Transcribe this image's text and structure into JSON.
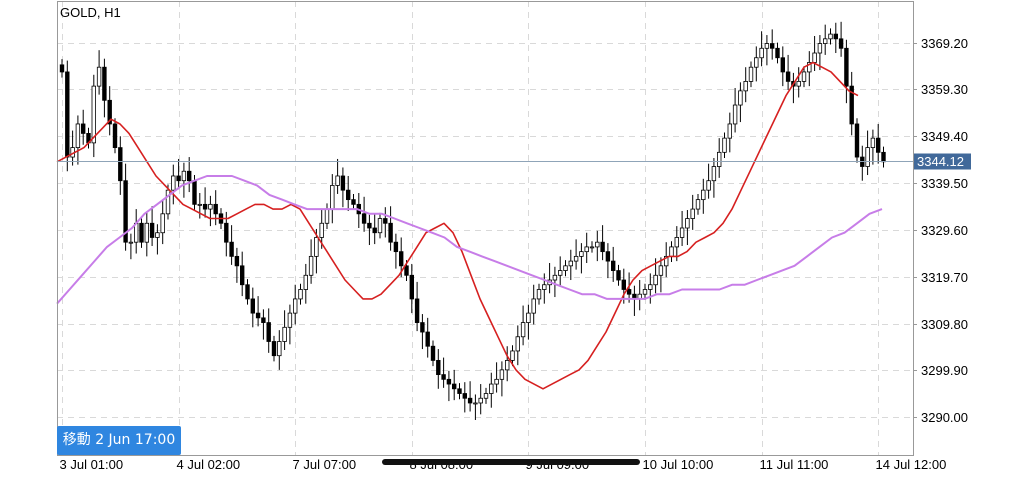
{
  "symbol": "GOLD, H1",
  "current_price": "3344.12",
  "jump_button_label": "移動 2 Jun 17:00",
  "colors": {
    "bull": "#ffffff",
    "bear": "#000000",
    "fast_ma": "#d62020",
    "slow_ma": "#c77de8",
    "price_line": "#8fa4b8",
    "price_badge": "#41699a",
    "grid": "#d9d9d9"
  },
  "chart_data": {
    "type": "candlestick",
    "title": "GOLD, H1",
    "ylim": [
      3282.0,
      3378.0
    ],
    "grid": true,
    "y_ticks": [
      3369.2,
      3359.3,
      3349.4,
      3339.5,
      3329.6,
      3319.7,
      3309.8,
      3299.9,
      3290.0
    ],
    "x_ticks": [
      {
        "label": "3 Jul 01:00",
        "index": 0
      },
      {
        "label": "4 Jul 02:00",
        "index": 22
      },
      {
        "label": "7 Jul 07:00",
        "index": 44
      },
      {
        "label": "8 Jul 08:00",
        "index": 66
      },
      {
        "label": "9 Jul 09:00",
        "index": 88
      },
      {
        "label": "10 Jul 10:00",
        "index": 110
      },
      {
        "label": "11 Jul 11:00",
        "index": 132
      },
      {
        "label": "14 Jul 12:00",
        "index": 154
      }
    ],
    "current_price": 3344.12,
    "candles_close": [
      3363,
      3345,
      3347,
      3352,
      3350,
      3348,
      3360,
      3364,
      3357,
      3352,
      3347,
      3340,
      3327,
      3327,
      3331,
      3327,
      3331,
      3328,
      3329,
      3333,
      3338,
      3341,
      3340,
      3342,
      3340,
      3335,
      3335,
      3334,
      3335,
      3333,
      3331,
      3327,
      3324,
      3322,
      3318,
      3315,
      3312,
      3311,
      3310,
      3306,
      3303,
      3306,
      3309,
      3312,
      3315,
      3317,
      3320,
      3324,
      3328,
      3331,
      3334,
      3339,
      3341,
      3338,
      3336,
      3335,
      3333,
      3331,
      3330,
      3329,
      3332,
      3331,
      3327,
      3325,
      3322,
      3320,
      3315,
      3310,
      3308,
      3305,
      3302,
      3299,
      3298,
      3297,
      3296,
      3295,
      3294,
      3293,
      3293,
      3294,
      3295,
      3297,
      3298,
      3300,
      3302,
      3304,
      3307,
      3310,
      3312,
      3315,
      3317,
      3318,
      3319,
      3320,
      3321,
      3322,
      3323,
      3324,
      3325,
      3326,
      3326,
      3327,
      3325,
      3323,
      3321,
      3319,
      3317,
      3316,
      3315,
      3316,
      3317,
      3318,
      3320,
      3322,
      3324,
      3326,
      3328,
      3330,
      3332,
      3334,
      3336,
      3338,
      3340,
      3343,
      3346,
      3349,
      3352,
      3356,
      3359,
      3361,
      3364,
      3366,
      3368,
      3369,
      3368,
      3366,
      3363,
      3361,
      3360,
      3361,
      3363,
      3365,
      3367,
      3369,
      3370,
      3371,
      3370,
      3368,
      3360,
      3352,
      3345,
      3343,
      3347,
      3349,
      3346,
      3344
    ],
    "series": [
      {
        "type": "line",
        "color": "#d62020",
        "values": [
          3344,
          3345,
          3346,
          3347,
          3349,
          3351,
          3353,
          3352,
          3350,
          3347,
          3344,
          3341,
          3339,
          3337,
          3335,
          3334,
          3333,
          3332,
          3332,
          3332,
          3333,
          3334,
          3335,
          3335,
          3334,
          3334,
          3335,
          3334,
          3331,
          3328,
          3325,
          3322,
          3319,
          3317,
          3315,
          3315,
          3316,
          3318,
          3320,
          3323,
          3326,
          3329,
          3330,
          3331,
          3329,
          3325,
          3320,
          3315,
          3311,
          3307,
          3303,
          3300,
          3298,
          3297,
          3296,
          3297,
          3298,
          3299,
          3300,
          3302,
          3305,
          3308,
          3312,
          3316,
          3319,
          3321,
          3322,
          3323,
          3324,
          3324,
          3325,
          3327,
          3328,
          3329,
          3331,
          3334,
          3338,
          3342,
          3346,
          3350,
          3354,
          3358,
          3361,
          3364,
          3365,
          3364,
          3363,
          3361,
          3359,
          3358
        ],
        "x_step": 9
      },
      {
        "type": "line",
        "color": "#c77de8",
        "values": [
          3314,
          3317,
          3320,
          3323,
          3326,
          3328,
          3330,
          3333,
          3335,
          3337,
          3339,
          3340,
          3341,
          3341,
          3341,
          3340,
          3339,
          3337,
          3336,
          3335,
          3334,
          3334,
          3334,
          3334,
          3334,
          3333,
          3333,
          3332,
          3331,
          3330,
          3329,
          3328,
          3326,
          3325,
          3324,
          3323,
          3322,
          3321,
          3320,
          3319,
          3318,
          3317,
          3316,
          3316,
          3315,
          3315,
          3315,
          3315,
          3316,
          3316,
          3317,
          3317,
          3317,
          3317,
          3318,
          3318,
          3319,
          3320,
          3321,
          3322,
          3324,
          3326,
          3328,
          3329,
          3331,
          3333,
          3334
        ],
        "x_step": 12.5
      }
    ]
  }
}
